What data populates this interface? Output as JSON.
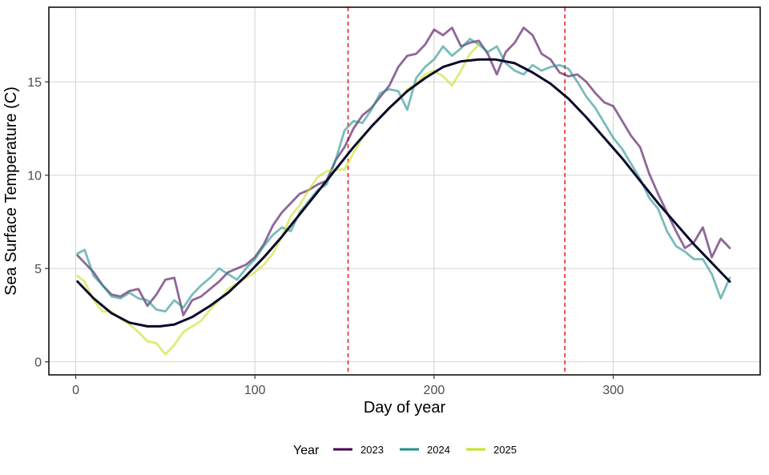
{
  "chart_data": {
    "type": "line",
    "xlabel": "Day of year",
    "ylabel": "Sea Surface Temperature (C)",
    "xlim": [
      -15,
      382
    ],
    "ylim": [
      -0.7,
      19.0
    ],
    "x_ticks": [
      0,
      100,
      200,
      300
    ],
    "y_ticks": [
      0,
      5,
      10,
      15
    ],
    "grid": true,
    "legend": {
      "title": "Year",
      "position": "bottom"
    },
    "vlines": [
      {
        "x": 152,
        "color": "#e41a1c",
        "style": "dashed"
      },
      {
        "x": 273,
        "color": "#e41a1c",
        "style": "dashed"
      }
    ],
    "series": [
      {
        "name": "2023",
        "color": "#440154",
        "x": [
          1,
          5,
          10,
          15,
          20,
          25,
          30,
          35,
          40,
          45,
          50,
          55,
          60,
          65,
          70,
          75,
          80,
          85,
          90,
          95,
          100,
          105,
          110,
          115,
          120,
          125,
          130,
          135,
          140,
          145,
          150,
          155,
          160,
          165,
          170,
          175,
          180,
          185,
          190,
          195,
          200,
          205,
          210,
          215,
          220,
          225,
          230,
          235,
          240,
          245,
          250,
          255,
          260,
          265,
          270,
          275,
          280,
          285,
          290,
          295,
          300,
          305,
          310,
          315,
          320,
          325,
          330,
          335,
          340,
          345,
          350,
          355,
          360,
          365
        ],
        "y": [
          5.7,
          5.3,
          4.8,
          4.1,
          3.6,
          3.5,
          3.8,
          3.9,
          3.0,
          3.6,
          4.4,
          4.5,
          2.5,
          3.3,
          3.5,
          3.9,
          4.3,
          4.8,
          5.0,
          5.2,
          5.6,
          6.3,
          7.3,
          8.0,
          8.5,
          9.0,
          9.2,
          9.5,
          9.7,
          10.8,
          11.5,
          12.5,
          13.2,
          13.6,
          14.2,
          14.8,
          15.8,
          16.4,
          16.5,
          17.0,
          17.8,
          17.5,
          17.9,
          16.9,
          17.1,
          17.2,
          16.5,
          15.4,
          16.6,
          17.1,
          17.9,
          17.5,
          16.5,
          16.2,
          15.5,
          15.3,
          15.4,
          15.0,
          14.4,
          13.9,
          13.7,
          12.9,
          12.1,
          11.5,
          10.1,
          9.0,
          8.0,
          7.0,
          6.1,
          6.4,
          7.2,
          5.6,
          6.6,
          6.1
        ]
      },
      {
        "name": "2024",
        "color": "#21908c",
        "x": [
          1,
          5,
          10,
          15,
          20,
          25,
          30,
          35,
          40,
          45,
          50,
          55,
          60,
          65,
          70,
          75,
          80,
          85,
          90,
          95,
          100,
          105,
          110,
          115,
          120,
          125,
          130,
          135,
          140,
          145,
          150,
          155,
          160,
          165,
          170,
          175,
          180,
          185,
          190,
          195,
          200,
          205,
          210,
          215,
          220,
          225,
          230,
          235,
          240,
          245,
          250,
          255,
          260,
          265,
          270,
          275,
          280,
          285,
          290,
          295,
          300,
          305,
          310,
          315,
          320,
          325,
          330,
          335,
          340,
          345,
          350,
          355,
          360,
          365
        ],
        "y": [
          5.8,
          6.0,
          4.6,
          4.1,
          3.5,
          3.4,
          3.7,
          3.4,
          3.3,
          2.8,
          2.7,
          3.3,
          2.9,
          3.6,
          4.1,
          4.5,
          5.0,
          4.7,
          4.4,
          5.0,
          5.5,
          6.2,
          6.8,
          7.2,
          7.0,
          8.0,
          8.6,
          9.2,
          9.5,
          10.8,
          12.4,
          12.9,
          12.8,
          13.5,
          14.4,
          14.6,
          14.5,
          13.5,
          15.2,
          15.8,
          16.2,
          16.9,
          16.4,
          16.8,
          17.3,
          17.0,
          16.6,
          16.9,
          16.0,
          15.6,
          15.4,
          15.9,
          15.6,
          15.8,
          15.9,
          15.7,
          15.0,
          14.2,
          13.6,
          12.8,
          12.0,
          11.4,
          10.6,
          9.8,
          8.8,
          8.2,
          7.0,
          6.2,
          5.9,
          5.5,
          5.5,
          4.7,
          3.4,
          4.5
        ]
      },
      {
        "name": "2025",
        "color": "#c8e020",
        "x": [
          1,
          5,
          10,
          15,
          20,
          25,
          30,
          35,
          40,
          45,
          50,
          55,
          60,
          65,
          70,
          75,
          80,
          85,
          90,
          95,
          100,
          105,
          110,
          115,
          120,
          125,
          130,
          135,
          140,
          145,
          150,
          155,
          160,
          165,
          170,
          175,
          180,
          185,
          190,
          195,
          200,
          205,
          210,
          215,
          220,
          225
        ],
        "y": [
          4.6,
          4.3,
          3.3,
          2.7,
          2.7,
          2.3,
          2.0,
          1.6,
          1.1,
          1.0,
          0.4,
          0.9,
          1.6,
          1.9,
          2.2,
          2.8,
          3.3,
          3.9,
          4.2,
          4.5,
          4.8,
          5.2,
          5.8,
          6.7,
          7.8,
          8.4,
          9.2,
          9.9,
          10.2,
          10.3,
          10.3,
          11.2,
          12.0,
          12.6,
          13.1,
          13.6,
          14.0,
          14.6,
          14.9,
          15.4,
          15.6,
          15.3,
          14.8,
          15.6,
          16.5,
          17.0
        ]
      },
      {
        "name": "",
        "color": "#0a0a2a",
        "x": [
          1,
          10,
          20,
          30,
          40,
          47,
          55,
          65,
          75,
          85,
          95,
          105,
          115,
          125,
          135,
          145,
          155,
          165,
          175,
          185,
          195,
          205,
          215,
          225,
          234,
          245,
          255,
          265,
          275,
          285,
          295,
          305,
          315,
          325,
          335,
          345,
          355,
          365
        ],
        "y": [
          4.3,
          3.4,
          2.6,
          2.1,
          1.9,
          1.9,
          2.0,
          2.4,
          3.0,
          3.7,
          4.6,
          5.6,
          6.7,
          7.9,
          9.1,
          10.3,
          11.5,
          12.6,
          13.6,
          14.5,
          15.2,
          15.8,
          16.1,
          16.2,
          16.2,
          16.0,
          15.5,
          14.9,
          14.1,
          13.1,
          12.0,
          10.9,
          9.7,
          8.5,
          7.4,
          6.3,
          5.3,
          4.3
        ]
      }
    ]
  }
}
